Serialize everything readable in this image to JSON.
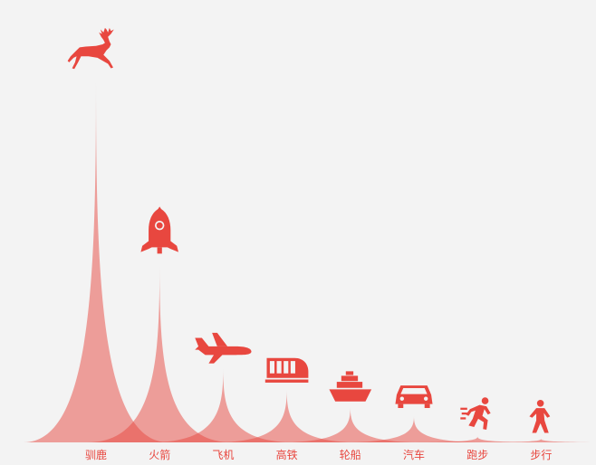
{
  "chart_data": {
    "type": "pictorial-bar",
    "title": "",
    "xlabel": "",
    "ylabel": "",
    "categories": [
      "驯鹿",
      "火箭",
      "飞机",
      "高铁",
      "轮船",
      "汽车",
      "跑步",
      "步行"
    ],
    "values": [
      123,
      60,
      25,
      18,
      12,
      9,
      2,
      1
    ],
    "icons": [
      "reindeer-icon",
      "rocket-icon",
      "airplane-icon",
      "train-icon",
      "ship-icon",
      "car-icon",
      "running-icon",
      "walking-icon"
    ],
    "ylim": [
      0,
      123
    ],
    "grid": false,
    "legend": "none",
    "colors": {
      "spike": "#e8473f",
      "label": "#e8473f",
      "background": "#f3f3f3"
    }
  }
}
